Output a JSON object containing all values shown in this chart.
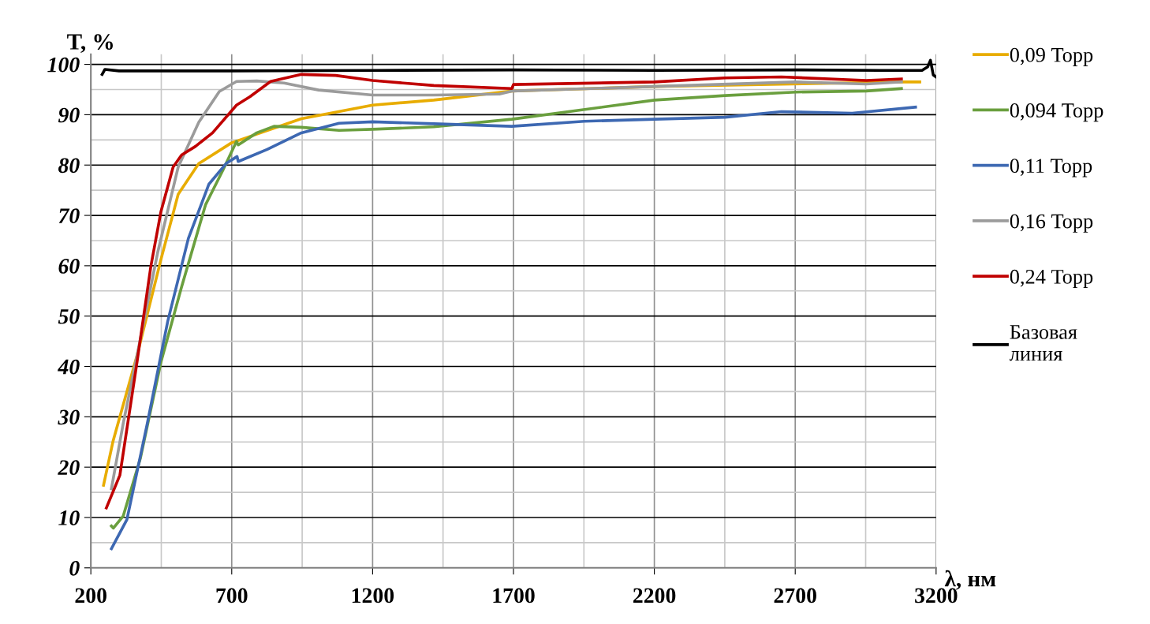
{
  "chart_data": {
    "type": "line",
    "ylabel": "T, %",
    "xlabel": "λ, нм",
    "xlim": [
      200,
      3200
    ],
    "xticks": [
      200,
      700,
      1200,
      1700,
      2200,
      2700,
      3200
    ],
    "ylim": [
      0,
      102
    ],
    "yticks": [
      0,
      10,
      20,
      30,
      40,
      50,
      60,
      70,
      80,
      90,
      100
    ],
    "grid": true,
    "legend": "right",
    "marker": "none",
    "line_style": "solid",
    "series": [
      {
        "name": "0,09 Торр",
        "color": "#e8ac00",
        "x": [
          245,
          279,
          364,
          449,
          510,
          583,
          699,
          947,
          1200,
          1417,
          1694,
          2201,
          3077,
          3142
        ],
        "values": [
          16.4,
          25.2,
          42.2,
          61.3,
          74.2,
          80.3,
          84.4,
          89.2,
          91.9,
          92.9,
          94.7,
          95.6,
          96.5,
          96.5
        ]
      },
      {
        "name": "0,094 Торр",
        "color": "#6a9f3e",
        "x": [
          273,
          280,
          315,
          376,
          449,
          522,
          607,
          668,
          717,
          723,
          789,
          850,
          947,
          1081,
          1200,
          1417,
          1694,
          2201,
          2451,
          2702,
          2952,
          3077
        ],
        "values": [
          8.3,
          7.9,
          10.3,
          21.8,
          40.9,
          55.8,
          72.1,
          78.9,
          84.7,
          84.0,
          86.4,
          87.7,
          87.5,
          86.9,
          87.1,
          87.6,
          89.1,
          92.9,
          93.8,
          94.5,
          94.7,
          95.2
        ]
      },
      {
        "name": "0,11 Торр",
        "color": "#3d68b2",
        "x": [
          273,
          328,
          400,
          473,
          546,
          619,
          680,
          719,
          723,
          826,
          947,
          1081,
          1200,
          1417,
          1694,
          1951,
          2201,
          2451,
          2651,
          2902,
          3127
        ],
        "values": [
          3.8,
          9.6,
          28.6,
          49.0,
          65.4,
          76.2,
          80.3,
          81.7,
          80.7,
          83.1,
          86.4,
          88.3,
          88.6,
          88.2,
          87.7,
          88.7,
          89.1,
          89.5,
          90.6,
          90.3,
          91.5
        ]
      },
      {
        "name": "0,16 Торр",
        "color": "#9b9b9b",
        "x": [
          273,
          315,
          364,
          437,
          510,
          583,
          656,
          717,
          789,
          886,
          1008,
          1200,
          1417,
          1650,
          1694,
          2201,
          2702,
          2952,
          3077
        ],
        "values": [
          15.7,
          28.7,
          42.2,
          62.6,
          79.6,
          88.5,
          94.6,
          96.6,
          96.7,
          96.3,
          94.9,
          93.9,
          93.9,
          94.1,
          94.7,
          95.6,
          96.5,
          96.1,
          96.5
        ]
      },
      {
        "name": "0,24 Торр",
        "color": "#c00000",
        "x": [
          255,
          303,
          364,
          413,
          449,
          492,
          522,
          571,
          632,
          717,
          765,
          838,
          947,
          1069,
          1200,
          1417,
          1694,
          1700,
          2201,
          2451,
          2651,
          2952,
          3077
        ],
        "values": [
          11.9,
          18.4,
          40.9,
          59.9,
          70.8,
          79.6,
          82.0,
          83.7,
          86.4,
          91.9,
          93.6,
          96.6,
          98.0,
          97.8,
          96.8,
          95.8,
          95.2,
          96.0,
          96.5,
          97.3,
          97.5,
          96.8,
          97.1
        ]
      },
      {
        "name": "Базовая\nлиния",
        "color": "#000000",
        "x": [
          240,
          250,
          300,
          700,
          1200,
          1700,
          2200,
          2700,
          3000,
          3150,
          3170,
          3180,
          3190,
          3200
        ],
        "values": [
          98.0,
          99.0,
          98.7,
          98.7,
          98.8,
          98.9,
          98.8,
          98.9,
          98.8,
          98.8,
          99.5,
          100.8,
          97.9,
          97.5
        ]
      }
    ]
  }
}
